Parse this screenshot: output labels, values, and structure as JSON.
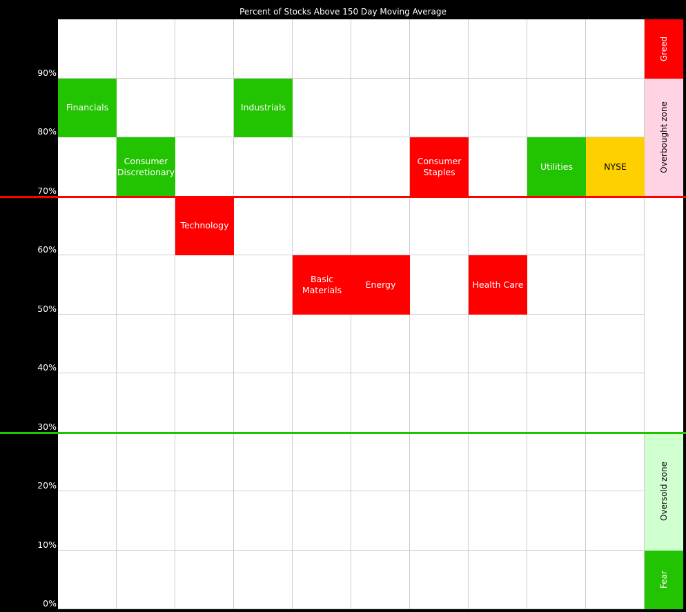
{
  "chart_data": {
    "type": "heatmap",
    "title": "Percent of Stocks Above 150 Day Moving Average",
    "ylim": [
      0,
      100
    ],
    "y_ticks": [
      "0%",
      "10%",
      "20%",
      "30%",
      "40%",
      "50%",
      "60%",
      "70%",
      "80%",
      "90%"
    ],
    "grid": true,
    "thresholds": [
      {
        "value": 70,
        "color": "#ff0000"
      },
      {
        "value": 30,
        "color": "#22c300"
      }
    ],
    "series": [
      {
        "name": "Financials",
        "column": 0,
        "range": [
          80,
          90
        ],
        "color": "#22c300"
      },
      {
        "name": "Consumer Discretionary",
        "column": 1,
        "range": [
          70,
          80
        ],
        "color": "#22c300"
      },
      {
        "name": "Technology",
        "column": 2,
        "range": [
          60,
          70
        ],
        "color": "#ff0000"
      },
      {
        "name": "Industrials",
        "column": 3,
        "range": [
          80,
          90
        ],
        "color": "#22c300"
      },
      {
        "name": "Basic Materials",
        "column": 4,
        "range": [
          50,
          60
        ],
        "color": "#ff0000"
      },
      {
        "name": "Energy",
        "column": 5,
        "range": [
          50,
          60
        ],
        "color": "#ff0000"
      },
      {
        "name": "Consumer Staples",
        "column": 6,
        "range": [
          70,
          80
        ],
        "color": "#ff0000"
      },
      {
        "name": "Health Care",
        "column": 7,
        "range": [
          50,
          60
        ],
        "color": "#ff0000"
      },
      {
        "name": "Utilities",
        "column": 8,
        "range": [
          70,
          80
        ],
        "color": "#22c300"
      },
      {
        "name": "NYSE",
        "column": 9,
        "range": [
          70,
          80
        ],
        "color": "#ffd000",
        "text_color": "#000000"
      }
    ],
    "zones": [
      {
        "label": "Greed",
        "range": [
          90,
          100
        ],
        "color": "#ff0000",
        "text_color": "#ffffff"
      },
      {
        "label": "Overbought zone",
        "range": [
          70,
          90
        ],
        "color": "#ffd3e3",
        "text_color": "#000000"
      },
      {
        "label": "",
        "range": [
          30,
          70
        ],
        "color": "#ffffff",
        "text_color": "#000000"
      },
      {
        "label": "Oversold zone",
        "range": [
          10,
          30
        ],
        "color": "#d0ffd0",
        "text_color": "#000000"
      },
      {
        "label": "Fear",
        "range": [
          0,
          10
        ],
        "color": "#22c300",
        "text_color": "#ffffff"
      }
    ]
  }
}
